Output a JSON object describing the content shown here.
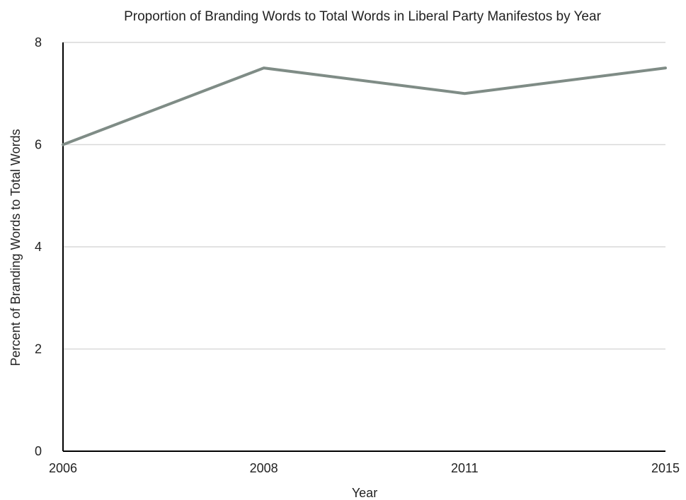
{
  "chart_data": {
    "type": "line",
    "title": "Proportion of Branding Words to Total Words in Liberal Party Manifestos by Year",
    "xlabel": "Year",
    "ylabel": "Percent of Branding Words to Total Words",
    "categories": [
      "2006",
      "2008",
      "2011",
      "2015"
    ],
    "series": [
      {
        "values": [
          6.0,
          7.5,
          7.0,
          7.5
        ]
      }
    ],
    "ylim": [
      0,
      8
    ],
    "yticks": [
      0,
      2,
      4,
      6,
      8
    ],
    "grid": true,
    "legend": "none",
    "colors": {
      "series": "#7f8c86",
      "grid": "#d9d9d9",
      "axis": "#000000"
    }
  }
}
